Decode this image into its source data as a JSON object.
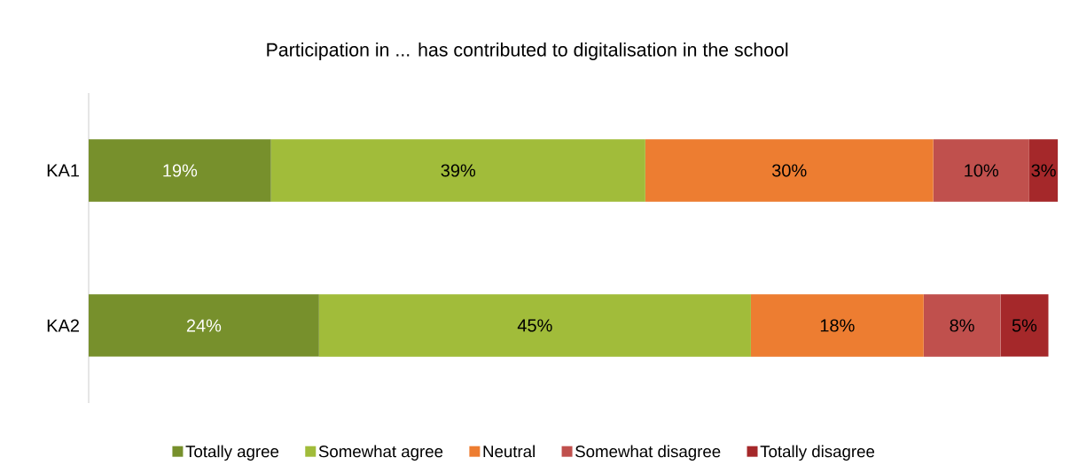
{
  "chart_data": {
    "type": "bar",
    "orientation": "horizontal",
    "stacked": true,
    "title": "Participation in ... has contributed to digitalisation in the school",
    "categories": [
      "KA1",
      "KA2"
    ],
    "series": [
      {
        "name": "Totally agree",
        "color": "#77902c",
        "values": [
          19,
          24
        ],
        "value_labels": [
          "19%",
          "24%"
        ]
      },
      {
        "name": "Somewhat agree",
        "color": "#a1bc3a",
        "values": [
          39,
          45
        ],
        "value_labels": [
          "39%",
          "45%"
        ]
      },
      {
        "name": "Neutral",
        "color": "#ed7d31",
        "values": [
          30,
          18
        ],
        "value_labels": [
          "30%",
          "18%"
        ]
      },
      {
        "name": "Somewhat disagree",
        "color": "#c0504d",
        "values": [
          10,
          8
        ],
        "value_labels": [
          "10%",
          "8%"
        ]
      },
      {
        "name": "Totally disagree",
        "color": "#a5282a",
        "values": [
          3,
          5
        ],
        "value_labels": [
          "3%",
          "5%"
        ]
      }
    ],
    "legend": "bottom"
  }
}
